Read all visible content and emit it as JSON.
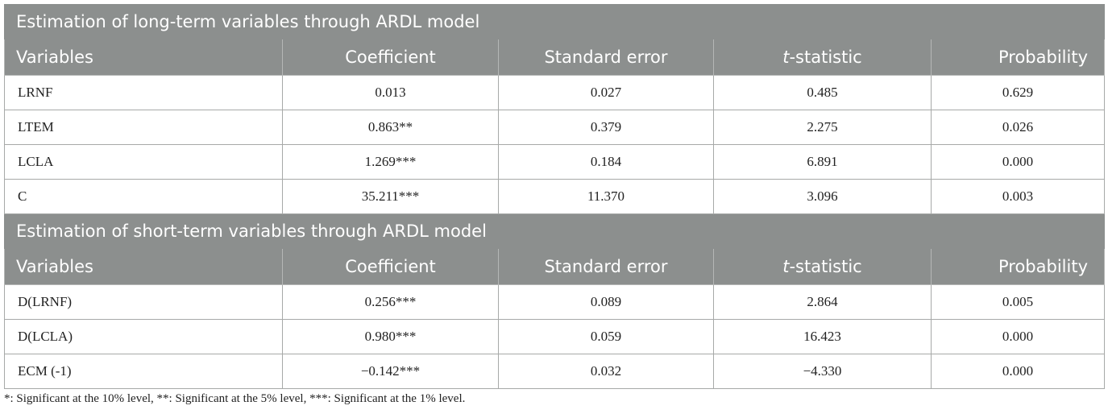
{
  "sections": [
    {
      "title": "Estimation of long-term variables through ARDL model",
      "columns": [
        "Variables",
        "Coefficient",
        "Standard error",
        "t-statistic",
        "Probability"
      ],
      "rows": [
        [
          "LRNF",
          "0.013",
          "0.027",
          "0.485",
          "0.629"
        ],
        [
          "LTEM",
          "0.863**",
          "0.379",
          "2.275",
          "0.026"
        ],
        [
          "LCLA",
          "1.269***",
          "0.184",
          "6.891",
          "0.000"
        ],
        [
          "C",
          "35.211***",
          "11.370",
          "3.096",
          "0.003"
        ]
      ]
    },
    {
      "title": "Estimation of short-term variables through ARDL model",
      "columns": [
        "Variables",
        "Coefficient",
        "Standard error",
        "t-statistic",
        "Probability"
      ],
      "rows": [
        [
          "D(LRNF)",
          "0.256***",
          "0.089",
          "2.864",
          "0.005"
        ],
        [
          "D(LCLA)",
          "0.980***",
          "0.059",
          "16.423",
          "0.000"
        ],
        [
          "ECM (-1)",
          "−0.142***",
          "0.032",
          "−4.330",
          "0.000"
        ]
      ]
    }
  ],
  "footnote": "*: Significant at the 10% level, **: Significant at the 5% level, ***: Significant at the 1% level."
}
